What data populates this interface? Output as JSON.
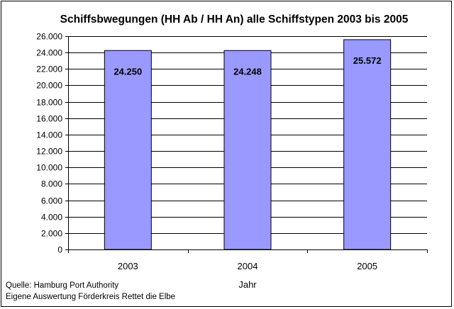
{
  "chart_data": {
    "type": "bar",
    "title": "Schiffsbwegungen (HH Ab / HH An) alle Schiffstypen 2003 bis 2005",
    "xlabel": "Jahr",
    "ylabel": "",
    "categories": [
      "2003",
      "2004",
      "2005"
    ],
    "values": [
      24250,
      24248,
      25572
    ],
    "data_labels": [
      "24.250",
      "24.248",
      "25.572"
    ],
    "ylim": [
      0,
      26000
    ],
    "yticks": [
      0,
      2000,
      4000,
      6000,
      8000,
      10000,
      12000,
      14000,
      16000,
      18000,
      20000,
      22000,
      24000,
      26000
    ],
    "ytick_labels": [
      "0",
      "2.000",
      "4.000",
      "6.000",
      "8.000",
      "10.000",
      "12.000",
      "14.000",
      "16.000",
      "18.000",
      "20.000",
      "22.000",
      "24.000",
      "26.000"
    ],
    "grid": true,
    "colors": {
      "bar": "#9999ff",
      "bar_border": "#000000",
      "grid": "#000000",
      "plot_bg": "#ffffff"
    }
  },
  "footnotes": {
    "source": "Quelle: Hamburg Port Authority",
    "analysis": "Eigene Auswertung Förderkreis Rettet die Elbe"
  }
}
